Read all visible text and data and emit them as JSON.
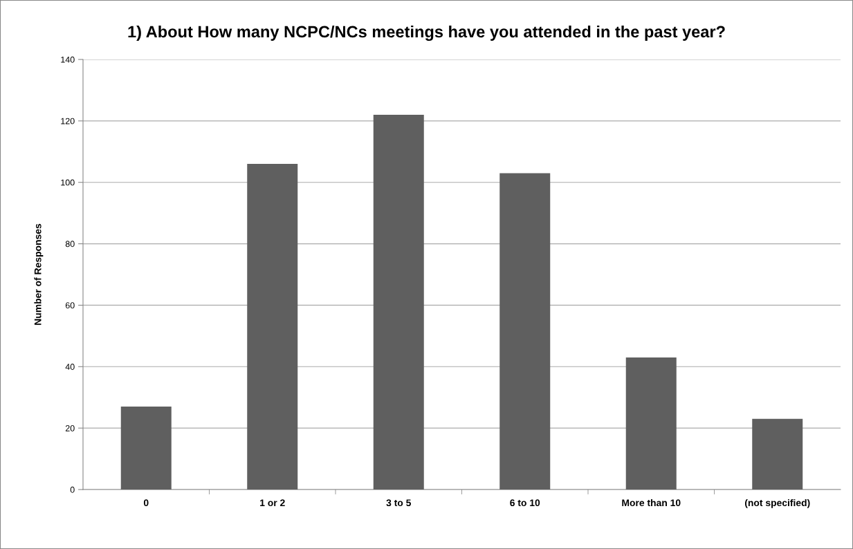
{
  "chart_data": {
    "type": "bar",
    "title": "1) About How many NCPC/NCs meetings have you attended in the past year?",
    "ylabel": "Number of Responses",
    "categories": [
      "0",
      "1 or 2",
      "3 to 5",
      "6 to 10",
      "More than 10",
      "(not specified)"
    ],
    "values": [
      27,
      106,
      122,
      103,
      43,
      23
    ],
    "color": "#5f5f5f",
    "ylim": [
      0,
      140
    ],
    "yticks": [
      0,
      20,
      40,
      60,
      80,
      100,
      120,
      140
    ],
    "grid": "y",
    "legend": false
  }
}
